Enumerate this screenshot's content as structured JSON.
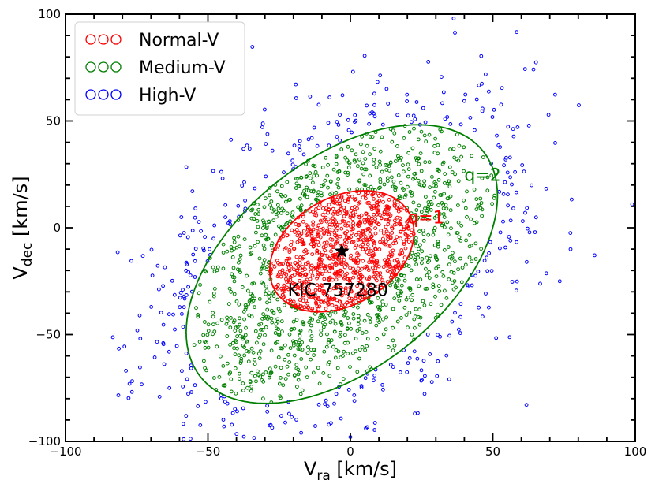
{
  "chart_data": {
    "type": "scatter",
    "xlabel": {
      "main": "V",
      "sub": "ra",
      "unit": " [km/s]"
    },
    "ylabel": {
      "main": "V",
      "sub": "dec",
      "unit": " [km/s]"
    },
    "xlim": [
      -100,
      100
    ],
    "ylim": [
      -100,
      100
    ],
    "xticks": [
      -100,
      -50,
      0,
      50,
      100
    ],
    "yticks": [
      -100,
      -50,
      0,
      50,
      100
    ],
    "xtick_labels": [
      "−100",
      "−50",
      "0",
      "50",
      "100"
    ],
    "ytick_labels": [
      "−100",
      "−50",
      "0",
      "50",
      "100"
    ],
    "grid": false,
    "legend_position": "top-left",
    "series": [
      {
        "name": "Normal-V",
        "color": "#ff0000",
        "marker": "open-circle",
        "count": 900,
        "region": "inside q=1"
      },
      {
        "name": "Medium-V",
        "color": "#008000",
        "marker": "open-circle",
        "count": 1000,
        "region": "between q=1 and q=2"
      },
      {
        "name": "High-V",
        "color": "#0000ff",
        "marker": "open-circle",
        "count": 380,
        "region": "outside q=2"
      }
    ],
    "ellipses": [
      {
        "label": "q=1",
        "color": "#ff0000",
        "center": [
          -3,
          -11
        ],
        "semi_major": 31,
        "semi_minor": 22,
        "angle_deg": 55,
        "label_at": [
          20,
          2
        ]
      },
      {
        "label": "q=2",
        "color": "#008000",
        "center": [
          -3,
          -17
        ],
        "semi_major": 74,
        "semi_minor": 42,
        "angle_deg": 55,
        "label_at": [
          40,
          22
        ]
      }
    ],
    "target": {
      "label": "KIC 757280",
      "x": -3,
      "y": -11,
      "marker": "star",
      "label_at": [
        -22,
        -29
      ]
    }
  }
}
